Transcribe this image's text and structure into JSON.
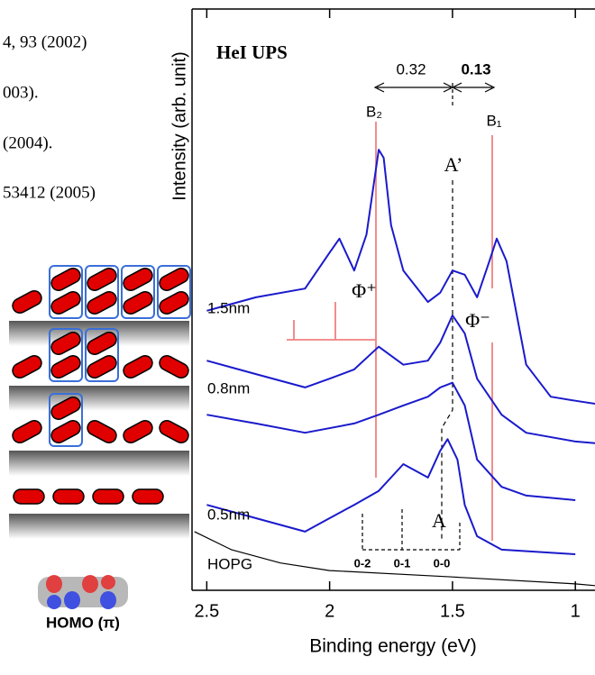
{
  "references": [
    "4, 93 (2002)",
    "003).",
    "(2004).",
    "53412 (2005)"
  ],
  "schematic": {
    "label": "HOMO (π)"
  },
  "chart_data": {
    "type": "line",
    "title": "HeI UPS",
    "xlabel": "Binding energy (eV)",
    "ylabel": "Intensity (arb. unit)",
    "xlim": [
      2.56,
      0.92
    ],
    "ylim": [
      0,
      100
    ],
    "xticks": [
      2.5,
      2,
      1.5,
      1
    ],
    "annotations": {
      "shift_left": "0.32",
      "shift_right": "0.13",
      "b2": "B₂",
      "b1": "B₁",
      "a_prime": "A’",
      "a": "A",
      "phi_plus": "Φ⁺",
      "phi_minus": "Φ⁻",
      "v02": "0-2",
      "v01": "0-1",
      "v00": "0-0"
    },
    "series": [
      {
        "name": "1.5nm",
        "color": "#1a1acc",
        "x": [
          2.5,
          2.3,
          2.1,
          2.0,
          1.96,
          1.9,
          1.85,
          1.8,
          1.78,
          1.75,
          1.7,
          1.6,
          1.55,
          1.5,
          1.45,
          1.4,
          1.35,
          1.32,
          1.28,
          1.2,
          1.1,
          1.0,
          0.92
        ],
        "values": [
          48.1,
          50.4,
          51.9,
          58.1,
          60.5,
          55.0,
          61.2,
          75.8,
          74.4,
          62.8,
          55.0,
          49.6,
          51.2,
          55.0,
          54.3,
          50.4,
          56.6,
          60.5,
          56.6,
          38.8,
          33.3,
          32.6,
          32.1
        ]
      },
      {
        "name": "0.8nm",
        "color": "#1a1acc",
        "x": [
          2.5,
          2.3,
          2.1,
          2.0,
          1.9,
          1.8,
          1.7,
          1.6,
          1.55,
          1.5,
          1.45,
          1.4,
          1.3,
          1.2,
          1.0,
          0.92
        ],
        "values": [
          39.5,
          37.2,
          34.9,
          36.4,
          38.0,
          41.9,
          38.8,
          39.5,
          42.6,
          47.3,
          44.2,
          36.4,
          30.2,
          27.1,
          25.6,
          25.3
        ]
      },
      {
        "color": "#1a1acc",
        "x": [
          2.5,
          2.3,
          2.1,
          1.9,
          1.8,
          1.7,
          1.6,
          1.55,
          1.5,
          1.45,
          1.4,
          1.3,
          1.2,
          1.0
        ],
        "values": [
          30.2,
          28.7,
          27.1,
          28.7,
          30.2,
          31.8,
          33.3,
          34.9,
          35.7,
          31.8,
          22.5,
          17.8,
          16.3,
          15.5
        ]
      },
      {
        "name": "0.5nm",
        "color": "#1a1acc",
        "x": [
          2.5,
          2.3,
          2.1,
          2.0,
          1.9,
          1.8,
          1.7,
          1.6,
          1.55,
          1.52,
          1.48,
          1.45,
          1.4,
          1.3,
          1.0
        ],
        "values": [
          14.7,
          12.4,
          10.1,
          12.4,
          14.7,
          17.1,
          21.7,
          19.4,
          24.0,
          26.0,
          22.5,
          14.7,
          9.3,
          7.0,
          6.2
        ]
      },
      {
        "name": "HOPG",
        "color": "#000000",
        "x": [
          2.55,
          2.4,
          2.2,
          2.0,
          1.5,
          1.0,
          0.92
        ],
        "values": [
          10.1,
          7.0,
          4.7,
          3.4,
          2.3,
          1.1,
          0.8
        ]
      }
    ]
  }
}
